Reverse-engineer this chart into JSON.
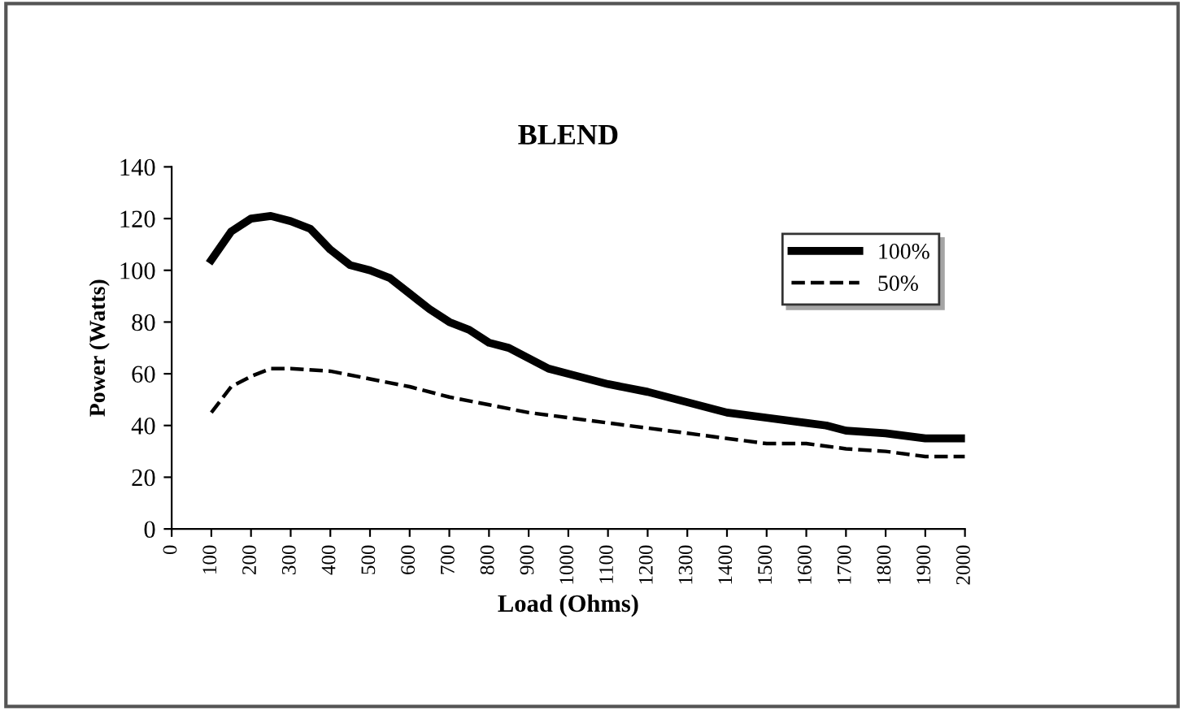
{
  "chart_data": {
    "type": "line",
    "title": "BLEND",
    "xlabel": "Load (Ohms)",
    "ylabel": "Power (Watts)",
    "xlim": [
      0,
      2000
    ],
    "xticks": [
      0,
      100,
      200,
      300,
      400,
      500,
      600,
      700,
      800,
      900,
      1000,
      1100,
      1200,
      1300,
      1400,
      1500,
      1600,
      1700,
      1800,
      1900,
      2000
    ],
    "ylim": [
      0,
      140
    ],
    "yticks": [
      0,
      20,
      40,
      60,
      80,
      100,
      120,
      140
    ],
    "grid": false,
    "legend": "top right",
    "series": [
      {
        "name": "100%",
        "color": "#000000",
        "line_style": "solid",
        "x": [
          100,
          150,
          200,
          250,
          300,
          350,
          400,
          450,
          500,
          550,
          600,
          650,
          700,
          750,
          800,
          850,
          900,
          950,
          1000,
          1100,
          1200,
          1300,
          1400,
          1500,
          1600,
          1650,
          1700,
          1800,
          1900,
          2000
        ],
        "values": [
          104,
          115,
          120,
          121,
          119,
          116,
          108,
          102,
          100,
          97,
          91,
          85,
          80,
          77,
          72,
          70,
          66,
          62,
          60,
          56,
          53,
          49,
          45,
          43,
          41,
          40,
          38,
          37,
          35,
          35
        ]
      },
      {
        "name": "50%",
        "color": "#000000",
        "line_style": "dashed",
        "x": [
          100,
          150,
          200,
          250,
          300,
          400,
          500,
          600,
          700,
          800,
          900,
          1000,
          1100,
          1200,
          1300,
          1400,
          1500,
          1600,
          1700,
          1800,
          1900,
          2000
        ],
        "values": [
          45,
          55,
          59,
          62,
          62,
          61,
          58,
          55,
          51,
          48,
          45,
          43,
          41,
          39,
          37,
          35,
          33,
          33,
          31,
          30,
          28,
          28
        ]
      }
    ]
  }
}
